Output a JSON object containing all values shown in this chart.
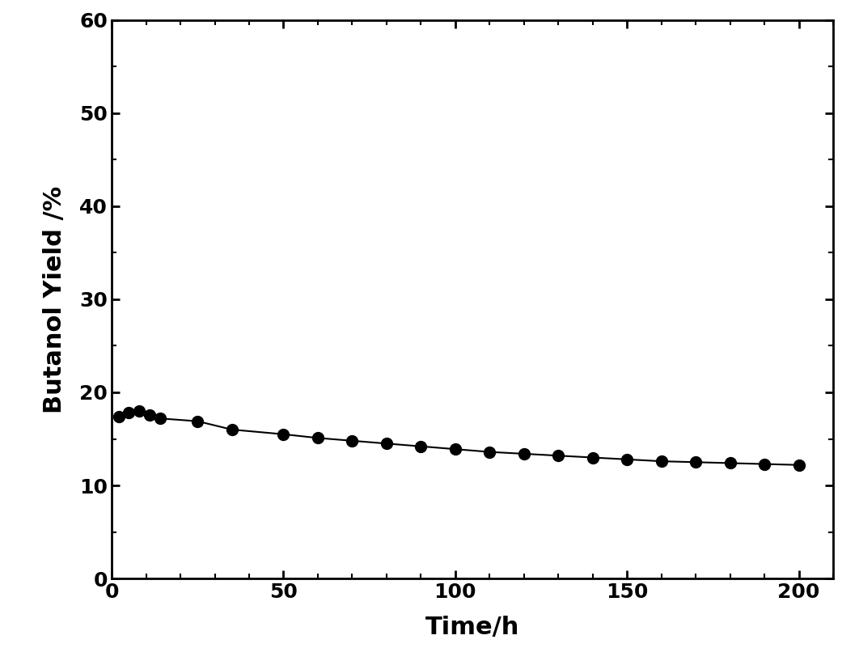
{
  "x": [
    2,
    5,
    8,
    11,
    14,
    25,
    35,
    50,
    60,
    70,
    80,
    90,
    100,
    110,
    120,
    130,
    140,
    150,
    160,
    170,
    180,
    190,
    200
  ],
  "y": [
    17.4,
    17.8,
    18.0,
    17.6,
    17.2,
    16.9,
    16.0,
    15.5,
    15.1,
    14.8,
    14.5,
    14.2,
    13.9,
    13.6,
    13.4,
    13.2,
    13.0,
    12.8,
    12.6,
    12.5,
    12.4,
    12.3,
    12.2
  ],
  "xlabel": "Time/h",
  "ylabel": "Butanol Yield /%",
  "xlim": [
    0,
    210
  ],
  "ylim": [
    0,
    60
  ],
  "xticks": [
    0,
    50,
    100,
    150,
    200
  ],
  "yticks": [
    0,
    10,
    20,
    30,
    40,
    50,
    60
  ],
  "line_color": "#000000",
  "marker_color": "#000000",
  "marker_size": 10,
  "line_width": 1.5,
  "background_color": "#ffffff",
  "tick_fontsize": 18,
  "label_fontsize": 22
}
